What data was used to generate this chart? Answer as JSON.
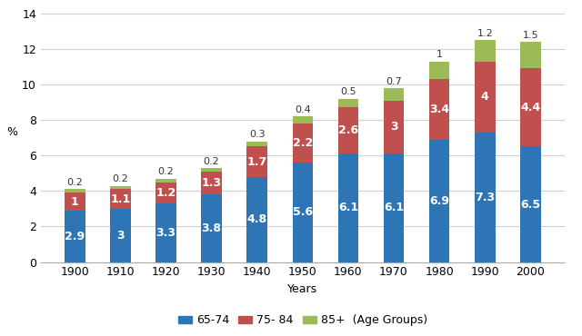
{
  "years": [
    "1900",
    "1910",
    "1920",
    "1930",
    "1940",
    "1950",
    "1960",
    "1970",
    "1980",
    "1990",
    "2000"
  ],
  "age_65_74": [
    2.9,
    3.0,
    3.3,
    3.8,
    4.8,
    5.6,
    6.1,
    6.1,
    6.9,
    7.3,
    6.5
  ],
  "age_75_84": [
    1.0,
    1.1,
    1.2,
    1.3,
    1.7,
    2.2,
    2.6,
    3.0,
    3.4,
    4.0,
    4.4
  ],
  "age_85p": [
    0.2,
    0.2,
    0.2,
    0.2,
    0.3,
    0.4,
    0.5,
    0.7,
    1.0,
    1.2,
    1.5
  ],
  "color_65_74": "#2E75B6",
  "color_75_84": "#C0504D",
  "color_85p": "#9BBB59",
  "xlabel": "Years",
  "ylabel": "%",
  "ylim": [
    0,
    14
  ],
  "yticks": [
    0,
    2,
    4,
    6,
    8,
    10,
    12,
    14
  ],
  "legend_labels": [
    "65-74",
    "75- 84",
    "85+  (Age Groups)"
  ],
  "bar_width": 0.45,
  "label_fontsize_inside": 9,
  "label_fontsize_above": 8,
  "axis_fontsize": 9,
  "legend_fontsize": 9
}
